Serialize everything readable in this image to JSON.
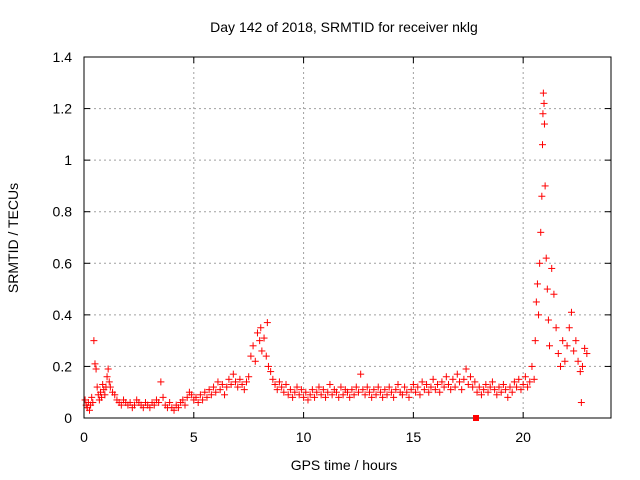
{
  "chart_data": {
    "type": "scatter",
    "title": "Day 142 of 2018, SRMTID for receiver nklg",
    "xlabel": "GPS time / hours",
    "ylabel": "SRMTID / TECUs",
    "xlim": [
      0,
      24
    ],
    "ylim": [
      0,
      1.4
    ],
    "xticks": [
      0,
      5,
      10,
      15,
      20
    ],
    "xtick_labels": [
      "0",
      "5",
      "10",
      "15",
      "20"
    ],
    "yticks": [
      0,
      0.2,
      0.4,
      0.6,
      0.8,
      1.0,
      1.2,
      1.4
    ],
    "ytick_labels": [
      "0",
      "0.2",
      "0.4",
      "0.6",
      "0.8",
      "1",
      "1.2",
      "1.4"
    ],
    "grid": true,
    "marker": "+",
    "color": "#ff0000",
    "series": [
      {
        "name": "SRMTID",
        "points": [
          [
            0.05,
            0.07
          ],
          [
            0.1,
            0.05
          ],
          [
            0.15,
            0.04
          ],
          [
            0.2,
            0.06
          ],
          [
            0.25,
            0.03
          ],
          [
            0.3,
            0.05
          ],
          [
            0.35,
            0.08
          ],
          [
            0.4,
            0.06
          ],
          [
            0.45,
            0.3
          ],
          [
            0.5,
            0.21
          ],
          [
            0.55,
            0.19
          ],
          [
            0.6,
            0.12
          ],
          [
            0.65,
            0.09
          ],
          [
            0.7,
            0.07
          ],
          [
            0.75,
            0.1
          ],
          [
            0.8,
            0.08
          ],
          [
            0.85,
            0.13
          ],
          [
            0.9,
            0.11
          ],
          [
            0.95,
            0.09
          ],
          [
            1.0,
            0.12
          ],
          [
            1.05,
            0.16
          ],
          [
            1.1,
            0.19
          ],
          [
            1.15,
            0.14
          ],
          [
            1.2,
            0.12
          ],
          [
            1.3,
            0.1
          ],
          [
            1.4,
            0.09
          ],
          [
            1.5,
            0.07
          ],
          [
            1.6,
            0.06
          ],
          [
            1.7,
            0.05
          ],
          [
            1.8,
            0.07
          ],
          [
            1.9,
            0.06
          ],
          [
            2.0,
            0.05
          ],
          [
            2.1,
            0.06
          ],
          [
            2.2,
            0.04
          ],
          [
            2.3,
            0.05
          ],
          [
            2.4,
            0.07
          ],
          [
            2.5,
            0.06
          ],
          [
            2.6,
            0.05
          ],
          [
            2.7,
            0.04
          ],
          [
            2.8,
            0.06
          ],
          [
            2.9,
            0.05
          ],
          [
            3.0,
            0.04
          ],
          [
            3.1,
            0.06
          ],
          [
            3.2,
            0.05
          ],
          [
            3.3,
            0.07
          ],
          [
            3.4,
            0.06
          ],
          [
            3.5,
            0.14
          ],
          [
            3.6,
            0.08
          ],
          [
            3.7,
            0.05
          ],
          [
            3.8,
            0.04
          ],
          [
            3.9,
            0.06
          ],
          [
            4.0,
            0.04
          ],
          [
            4.1,
            0.03
          ],
          [
            4.2,
            0.05
          ],
          [
            4.3,
            0.04
          ],
          [
            4.4,
            0.06
          ],
          [
            4.5,
            0.07
          ],
          [
            4.6,
            0.05
          ],
          [
            4.7,
            0.08
          ],
          [
            4.8,
            0.1
          ],
          [
            4.9,
            0.09
          ],
          [
            5.0,
            0.07
          ],
          [
            5.1,
            0.08
          ],
          [
            5.2,
            0.06
          ],
          [
            5.3,
            0.09
          ],
          [
            5.4,
            0.07
          ],
          [
            5.5,
            0.1
          ],
          [
            5.6,
            0.08
          ],
          [
            5.7,
            0.11
          ],
          [
            5.8,
            0.09
          ],
          [
            5.9,
            0.12
          ],
          [
            6.0,
            0.1
          ],
          [
            6.1,
            0.14
          ],
          [
            6.2,
            0.11
          ],
          [
            6.3,
            0.13
          ],
          [
            6.4,
            0.09
          ],
          [
            6.5,
            0.12
          ],
          [
            6.6,
            0.15
          ],
          [
            6.7,
            0.13
          ],
          [
            6.8,
            0.17
          ],
          [
            6.9,
            0.14
          ],
          [
            7.0,
            0.12
          ],
          [
            7.1,
            0.15
          ],
          [
            7.2,
            0.13
          ],
          [
            7.3,
            0.11
          ],
          [
            7.4,
            0.14
          ],
          [
            7.5,
            0.16
          ],
          [
            7.6,
            0.24
          ],
          [
            7.7,
            0.28
          ],
          [
            7.8,
            0.22
          ],
          [
            7.9,
            0.33
          ],
          [
            8.0,
            0.3
          ],
          [
            8.05,
            0.35
          ],
          [
            8.1,
            0.26
          ],
          [
            8.2,
            0.31
          ],
          [
            8.3,
            0.24
          ],
          [
            8.35,
            0.37
          ],
          [
            8.4,
            0.2
          ],
          [
            8.5,
            0.18
          ],
          [
            8.6,
            0.15
          ],
          [
            8.7,
            0.13
          ],
          [
            8.8,
            0.11
          ],
          [
            8.9,
            0.14
          ],
          [
            9.0,
            0.12
          ],
          [
            9.1,
            0.1
          ],
          [
            9.2,
            0.13
          ],
          [
            9.3,
            0.09
          ],
          [
            9.4,
            0.11
          ],
          [
            9.5,
            0.08
          ],
          [
            9.6,
            0.1
          ],
          [
            9.7,
            0.12
          ],
          [
            9.8,
            0.09
          ],
          [
            9.9,
            0.11
          ],
          [
            10.0,
            0.08
          ],
          [
            10.1,
            0.1
          ],
          [
            10.2,
            0.07
          ],
          [
            10.3,
            0.09
          ],
          [
            10.4,
            0.11
          ],
          [
            10.5,
            0.08
          ],
          [
            10.6,
            0.1
          ],
          [
            10.7,
            0.12
          ],
          [
            10.8,
            0.09
          ],
          [
            10.9,
            0.11
          ],
          [
            11.0,
            0.08
          ],
          [
            11.1,
            0.1
          ],
          [
            11.2,
            0.13
          ],
          [
            11.3,
            0.09
          ],
          [
            11.4,
            0.11
          ],
          [
            11.5,
            0.1
          ],
          [
            11.6,
            0.08
          ],
          [
            11.7,
            0.12
          ],
          [
            11.8,
            0.09
          ],
          [
            11.9,
            0.11
          ],
          [
            12.0,
            0.1
          ],
          [
            12.1,
            0.08
          ],
          [
            12.2,
            0.11
          ],
          [
            12.3,
            0.09
          ],
          [
            12.4,
            0.12
          ],
          [
            12.5,
            0.1
          ],
          [
            12.6,
            0.17
          ],
          [
            12.7,
            0.11
          ],
          [
            12.8,
            0.09
          ],
          [
            12.9,
            0.12
          ],
          [
            13.0,
            0.1
          ],
          [
            13.1,
            0.08
          ],
          [
            13.2,
            0.11
          ],
          [
            13.3,
            0.09
          ],
          [
            13.4,
            0.12
          ],
          [
            13.5,
            0.1
          ],
          [
            13.6,
            0.08
          ],
          [
            13.7,
            0.11
          ],
          [
            13.8,
            0.09
          ],
          [
            13.9,
            0.12
          ],
          [
            14.0,
            0.1
          ],
          [
            14.1,
            0.08
          ],
          [
            14.2,
            0.11
          ],
          [
            14.3,
            0.13
          ],
          [
            14.4,
            0.1
          ],
          [
            14.5,
            0.09
          ],
          [
            14.6,
            0.12
          ],
          [
            14.7,
            0.1
          ],
          [
            14.8,
            0.08
          ],
          [
            14.9,
            0.11
          ],
          [
            15.0,
            0.13
          ],
          [
            15.1,
            0.1
          ],
          [
            15.2,
            0.12
          ],
          [
            15.3,
            0.09
          ],
          [
            15.4,
            0.14
          ],
          [
            15.5,
            0.11
          ],
          [
            15.6,
            0.13
          ],
          [
            15.7,
            0.1
          ],
          [
            15.8,
            0.12
          ],
          [
            15.9,
            0.15
          ],
          [
            16.0,
            0.11
          ],
          [
            16.1,
            0.13
          ],
          [
            16.2,
            0.1
          ],
          [
            16.3,
            0.14
          ],
          [
            16.4,
            0.12
          ],
          [
            16.5,
            0.16
          ],
          [
            16.6,
            0.13
          ],
          [
            16.7,
            0.11
          ],
          [
            16.8,
            0.15
          ],
          [
            16.9,
            0.12
          ],
          [
            17.0,
            0.17
          ],
          [
            17.1,
            0.14
          ],
          [
            17.2,
            0.11
          ],
          [
            17.3,
            0.15
          ],
          [
            17.4,
            0.19
          ],
          [
            17.5,
            0.13
          ],
          [
            17.6,
            0.16
          ],
          [
            17.7,
            0.12
          ],
          [
            17.8,
            0.14
          ],
          [
            17.9,
            0.1
          ],
          [
            18.0,
            0.12
          ],
          [
            18.1,
            0.09
          ],
          [
            18.2,
            0.11
          ],
          [
            18.3,
            0.13
          ],
          [
            18.4,
            0.1
          ],
          [
            18.5,
            0.12
          ],
          [
            18.6,
            0.14
          ],
          [
            18.7,
            0.11
          ],
          [
            18.8,
            0.09
          ],
          [
            18.9,
            0.12
          ],
          [
            19.0,
            0.1
          ],
          [
            19.1,
            0.13
          ],
          [
            19.2,
            0.11
          ],
          [
            19.3,
            0.08
          ],
          [
            19.4,
            0.12
          ],
          [
            19.5,
            0.1
          ],
          [
            19.6,
            0.14
          ],
          [
            19.7,
            0.12
          ],
          [
            19.8,
            0.15
          ],
          [
            19.9,
            0.11
          ],
          [
            20.0,
            0.13
          ],
          [
            20.1,
            0.16
          ],
          [
            20.2,
            0.12
          ],
          [
            20.3,
            0.14
          ],
          [
            20.4,
            0.2
          ],
          [
            20.5,
            0.15
          ],
          [
            20.55,
            0.3
          ],
          [
            20.6,
            0.45
          ],
          [
            20.65,
            0.52
          ],
          [
            20.7,
            0.4
          ],
          [
            20.75,
            0.6
          ],
          [
            20.8,
            0.72
          ],
          [
            20.85,
            0.86
          ],
          [
            20.88,
            1.06
          ],
          [
            20.9,
            1.18
          ],
          [
            20.92,
            1.26
          ],
          [
            20.95,
            1.22
          ],
          [
            20.97,
            1.14
          ],
          [
            21.0,
            0.9
          ],
          [
            21.05,
            0.62
          ],
          [
            21.1,
            0.5
          ],
          [
            21.15,
            0.38
          ],
          [
            21.2,
            0.28
          ],
          [
            21.3,
            0.58
          ],
          [
            21.4,
            0.48
          ],
          [
            21.5,
            0.35
          ],
          [
            21.6,
            0.25
          ],
          [
            21.7,
            0.2
          ],
          [
            21.8,
            0.3
          ],
          [
            21.9,
            0.22
          ],
          [
            22.0,
            0.28
          ],
          [
            22.1,
            0.35
          ],
          [
            22.2,
            0.41
          ],
          [
            22.3,
            0.26
          ],
          [
            22.4,
            0.3
          ],
          [
            22.5,
            0.22
          ],
          [
            22.6,
            0.18
          ],
          [
            22.65,
            0.06
          ],
          [
            22.7,
            0.2
          ],
          [
            22.8,
            0.27
          ],
          [
            22.9,
            0.25
          ]
        ]
      }
    ]
  }
}
